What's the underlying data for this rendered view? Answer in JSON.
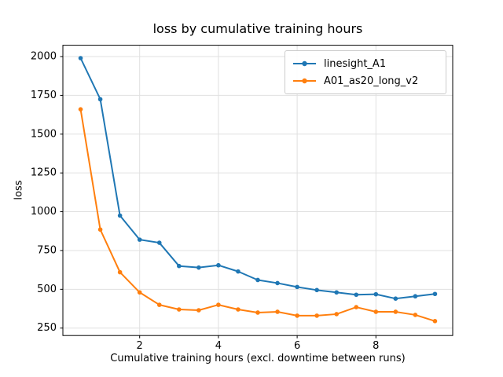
{
  "chart_data": {
    "type": "line",
    "title": "loss by cumulative training hours",
    "xlabel": "Cumulative training hours (excl. downtime between runs)",
    "ylabel": "loss",
    "x": [
      0.5,
      1.0,
      1.5,
      2.0,
      2.5,
      3.0,
      3.5,
      4.0,
      4.5,
      5.0,
      5.5,
      6.0,
      6.5,
      7.0,
      7.5,
      8.0,
      8.5,
      9.0,
      9.5
    ],
    "series": [
      {
        "name": "linesight_A1",
        "color": "#1f77b4",
        "values": [
          1990,
          1725,
          975,
          820,
          800,
          650,
          640,
          655,
          615,
          560,
          540,
          515,
          495,
          480,
          465,
          468,
          440,
          455,
          470
        ]
      },
      {
        "name": "A01_as20_long_v2",
        "color": "#ff7f0e",
        "values": [
          1660,
          885,
          610,
          480,
          400,
          370,
          365,
          400,
          370,
          350,
          355,
          330,
          330,
          340,
          385,
          355,
          355,
          335,
          295
        ]
      }
    ],
    "xlim": [
      0.05,
      9.95
    ],
    "ylim": [
      202,
      2073
    ],
    "x_ticks": [
      2,
      4,
      6,
      8
    ],
    "y_ticks": [
      250,
      500,
      750,
      1000,
      1250,
      1500,
      1750,
      2000
    ],
    "grid": true,
    "legend_position": "upper right",
    "grid_color": "#e0e0e0",
    "spine_color": "#000000",
    "background": "#ffffff"
  }
}
